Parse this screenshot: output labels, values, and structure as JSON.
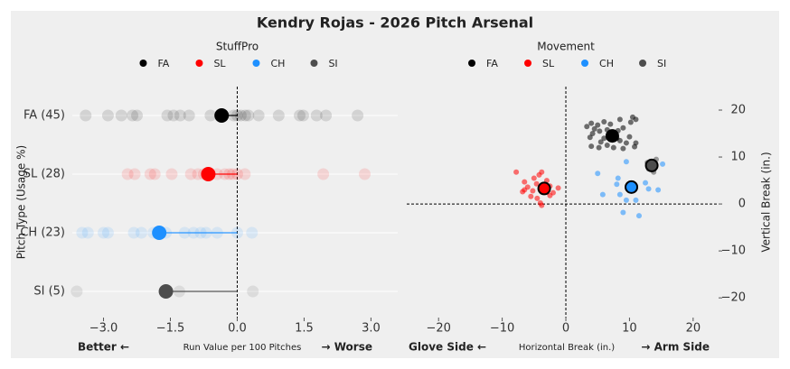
{
  "title": "Kendry Rojas - 2026 Pitch Arsenal",
  "chart_data": [
    {
      "type": "strip",
      "legend_title": "StuffPro",
      "ylabel": "Pitch Type (Usage %)",
      "xlabel": "Run Value per 100 Pitches",
      "xlabel_left": "Better ←",
      "xlabel_right": "→ Worse",
      "categories": [
        "FA (45)",
        "SL (28)",
        "CH (23)",
        "SI (5)"
      ],
      "xlim": [
        -3.7,
        3.6
      ],
      "xticks": [
        {
          "value": -3,
          "label": "−3.0"
        },
        {
          "value": -1.5,
          "label": "−1.5"
        },
        {
          "value": 0,
          "label": "0.0"
        },
        {
          "value": 1.5,
          "label": "1.5"
        },
        {
          "value": 3,
          "label": "3.0"
        }
      ],
      "series": [
        {
          "name": "FA",
          "color": "#000000",
          "mean": -0.35,
          "values": [
            -3.4,
            -2.9,
            -2.6,
            -2.35,
            -2.25,
            -1.57,
            -1.43,
            -1.28,
            -1.08,
            -0.6,
            -0.08,
            0.0,
            0.08,
            0.18,
            0.25,
            0.48,
            0.93,
            1.4,
            1.48,
            1.78,
            1.99,
            2.7
          ]
        },
        {
          "name": "SL",
          "color": "#ff0000",
          "mean": -0.65,
          "values": [
            -2.46,
            -2.3,
            -1.95,
            -1.85,
            -1.47,
            -1.04,
            -0.88,
            -0.75,
            -0.45,
            -0.28,
            -0.18,
            -0.1,
            0.0,
            0.17,
            1.93,
            2.86
          ]
        },
        {
          "name": "CH",
          "color": "#1e90ff",
          "mean": -1.75,
          "values": [
            -3.48,
            -3.35,
            -3.0,
            -2.9,
            -2.32,
            -2.15,
            -1.88,
            -1.6,
            -1.18,
            -0.98,
            -0.82,
            -0.7,
            -0.45,
            0.0,
            0.33
          ]
        },
        {
          "name": "SI",
          "color": "#4d4d4d",
          "mean": -1.6,
          "values": [
            -3.6,
            -1.3,
            0.35
          ]
        }
      ]
    },
    {
      "type": "scatter",
      "legend_title": "Movement",
      "ylabel": "Vertical Break (in.)",
      "xlabel": "Horizontal Break (in.)",
      "xlabel_left": "Glove Side ←",
      "xlabel_right": "→ Arm Side",
      "xlim": [
        -25,
        24
      ],
      "ylim": [
        -24.2,
        25
      ],
      "xticks": [
        {
          "value": -20,
          "label": "−20"
        },
        {
          "value": -10,
          "label": "−10"
        },
        0,
        10,
        20
      ],
      "yticks": [
        {
          "value": -20,
          "label": "−20"
        },
        {
          "value": -10,
          "label": "−10"
        },
        0,
        10,
        20
      ],
      "series": [
        {
          "name": "FA",
          "color": "#000000",
          "mean_x": 7.3,
          "mean_y": 14.5,
          "x": [
            3.3,
            4.0,
            4.5,
            5.0,
            5.3,
            4.2,
            6.0,
            6.5,
            7.0,
            8.5,
            9.0,
            10.5,
            10.2,
            11.0,
            8.0,
            8.5,
            9.5,
            10.0,
            11.0,
            5.5,
            6.5,
            4.0,
            7.5,
            9.0,
            3.8,
            6.0,
            7.2,
            8.2,
            10.8,
            5.2
          ],
          "y": [
            16.5,
            17.2,
            16.0,
            16.8,
            15.5,
            15.0,
            17.5,
            15.8,
            17.0,
            18.0,
            16.2,
            18.5,
            17.4,
            18.0,
            14.0,
            13.5,
            13.0,
            14.3,
            13.0,
            13.2,
            12.5,
            12.3,
            12.0,
            11.8,
            14.2,
            14.0,
            15.2,
            15.6,
            12.2,
            12.0
          ]
        },
        {
          "name": "SL",
          "color": "#ff0000",
          "mean_x": -3.4,
          "mean_y": 3.3,
          "x": [
            -7.8,
            -6.5,
            -6.0,
            -6.5,
            -6.8,
            -5.0,
            -4.6,
            -4.2,
            -3.8,
            -3.0,
            -2.5,
            -5.5,
            -4.5,
            -4.0,
            -3.8,
            -2.0,
            -1.2,
            -2.5,
            -5.2,
            -3.0
          ],
          "y": [
            6.8,
            4.7,
            3.6,
            3.0,
            2.6,
            5.5,
            4.3,
            6.2,
            6.8,
            5.0,
            3.8,
            1.6,
            1.2,
            0.2,
            -0.3,
            2.4,
            3.4,
            1.8,
            2.8,
            2.5
          ]
        },
        {
          "name": "CH",
          "color": "#1e90ff",
          "mean_x": 10.3,
          "mean_y": 3.6,
          "x": [
            5.0,
            5.8,
            8.2,
            8.5,
            9.0,
            9.5,
            11.0,
            11.5,
            12.5,
            13.0,
            14.5,
            15.2,
            8.0,
            10.8,
            9.5
          ],
          "y": [
            6.5,
            2.0,
            5.5,
            2.0,
            -1.8,
            0.8,
            0.8,
            -2.5,
            4.5,
            3.2,
            3.0,
            8.5,
            4.2,
            3.0,
            9.0
          ]
        },
        {
          "name": "SI",
          "color": "#4d4d4d",
          "mean_x": 13.5,
          "mean_y": 8.2,
          "x": [
            13.0,
            14.2,
            13.8,
            12.8
          ],
          "y": [
            7.5,
            9.5,
            6.8,
            8.8
          ]
        }
      ]
    }
  ]
}
